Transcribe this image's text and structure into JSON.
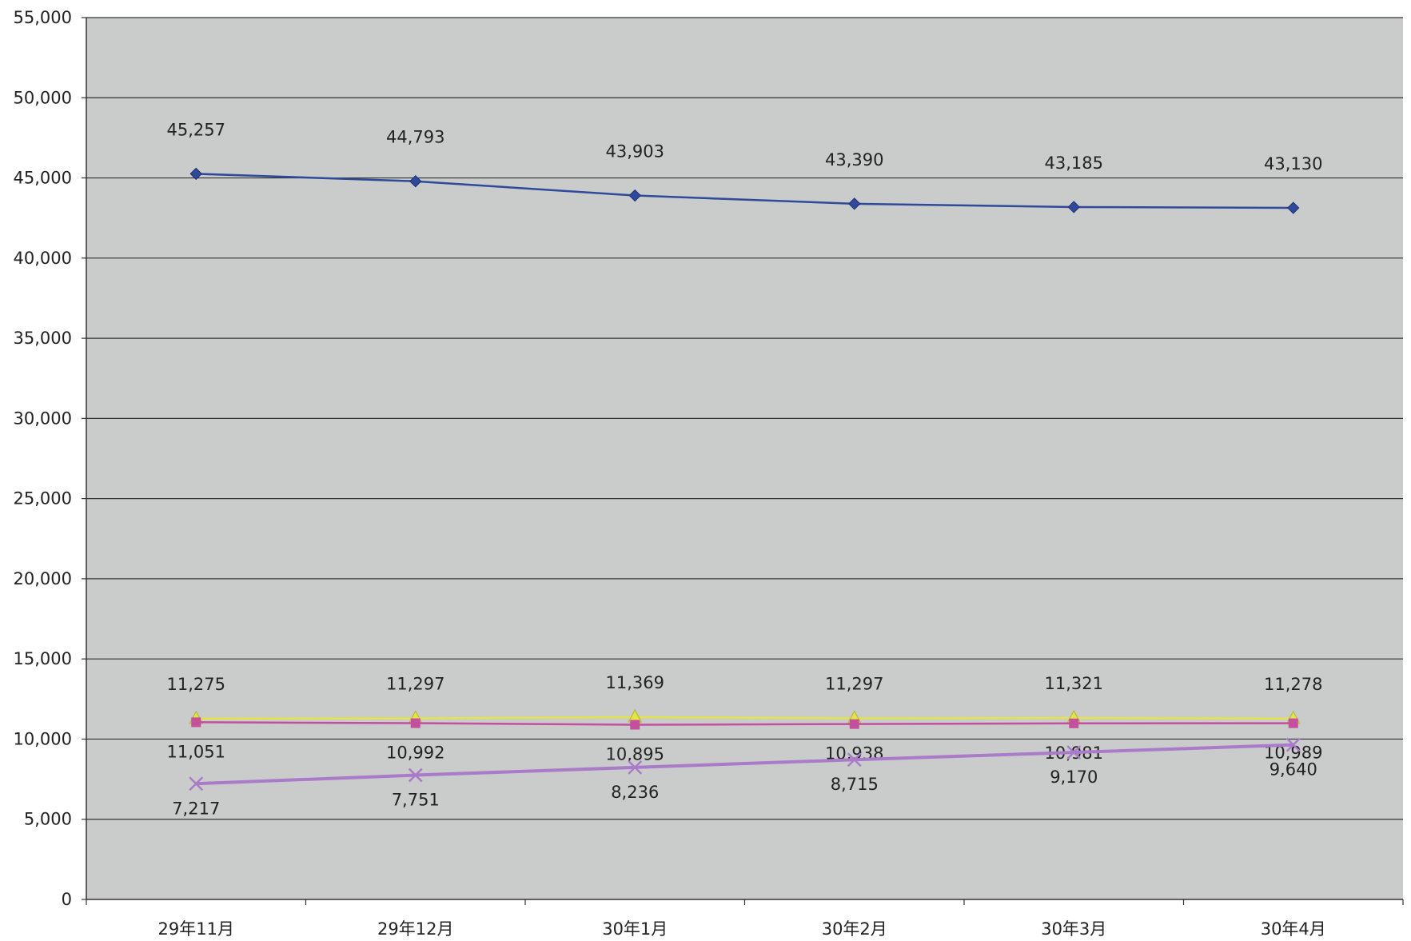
{
  "chart_data": {
    "type": "line",
    "categories": [
      "29年11月",
      "29年12月",
      "30年1月",
      "30年2月",
      "30年3月",
      "30年4月"
    ],
    "ylim": [
      0,
      55000
    ],
    "yticks": [
      0,
      5000,
      10000,
      15000,
      20000,
      25000,
      30000,
      35000,
      40000,
      45000,
      50000,
      55000
    ],
    "ytick_labels": [
      "0",
      "5,000",
      "10,000",
      "15,000",
      "20,000",
      "25,000",
      "30,000",
      "35,000",
      "40,000",
      "45,000",
      "50,000",
      "55,000"
    ],
    "grid": true,
    "legend": "none",
    "plot_background": "#c9cccb",
    "series": [
      {
        "values": [
          45257,
          44793,
          43903,
          43390,
          43185,
          43130
        ],
        "labels": [
          "45,257",
          "44,793",
          "43,903",
          "43,390",
          "43,185",
          "43,130"
        ],
        "color": "#2f4a9a",
        "marker": "diamond"
      },
      {
        "values": [
          11275,
          11297,
          11369,
          11297,
          11321,
          11278
        ],
        "labels": [
          "11,275",
          "11,297",
          "11,369",
          "11,297",
          "11,321",
          "11,278"
        ],
        "color": "#e3e34a",
        "marker": "triangle"
      },
      {
        "values": [
          11051,
          10992,
          10895,
          10938,
          10981,
          10989
        ],
        "labels": [
          "11,051",
          "10,992",
          "10,895",
          "10,938",
          "10,981",
          "10,989"
        ],
        "color": "#c44f9d",
        "marker": "square"
      },
      {
        "values": [
          7217,
          7751,
          8236,
          8715,
          9170,
          9640
        ],
        "labels": [
          "7,217",
          "7,751",
          "8,236",
          "8,715",
          "9,170",
          "9,640"
        ],
        "color": "#a97bc9",
        "marker": "x"
      }
    ]
  }
}
